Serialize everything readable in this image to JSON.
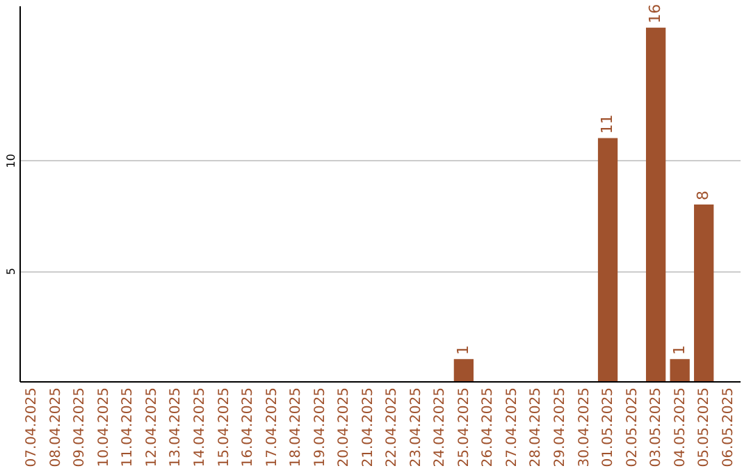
{
  "chart_data": {
    "type": "bar",
    "categories": [
      "07.04.2025",
      "08.04.2025",
      "09.04.2025",
      "10.04.2025",
      "11.04.2025",
      "12.04.2025",
      "13.04.2025",
      "14.04.2025",
      "15.04.2025",
      "16.04.2025",
      "17.04.2025",
      "18.04.2025",
      "19.04.2025",
      "20.04.2025",
      "21.04.2025",
      "22.04.2025",
      "23.04.2025",
      "24.04.2025",
      "25.04.2025",
      "26.04.2025",
      "27.04.2025",
      "28.04.2025",
      "29.04.2025",
      "30.04.2025",
      "01.05.2025",
      "02.05.2025",
      "03.05.2025",
      "04.05.2025",
      "05.05.2025",
      "06.05.2025"
    ],
    "values": [
      0,
      0,
      0,
      0,
      0,
      0,
      0,
      0,
      0,
      0,
      0,
      0,
      0,
      0,
      0,
      0,
      0,
      0,
      1,
      0,
      0,
      0,
      0,
      0,
      11,
      0,
      16,
      1,
      8,
      0
    ],
    "value_labels": [
      null,
      null,
      null,
      null,
      null,
      null,
      null,
      null,
      null,
      null,
      null,
      null,
      null,
      null,
      null,
      null,
      null,
      null,
      "1",
      null,
      null,
      null,
      null,
      null,
      "11",
      null,
      "16",
      "1",
      "8",
      null
    ],
    "color": "#a0522d",
    "ylim": [
      0,
      17
    ],
    "yticks": [
      5,
      10
    ],
    "grid": "y"
  }
}
